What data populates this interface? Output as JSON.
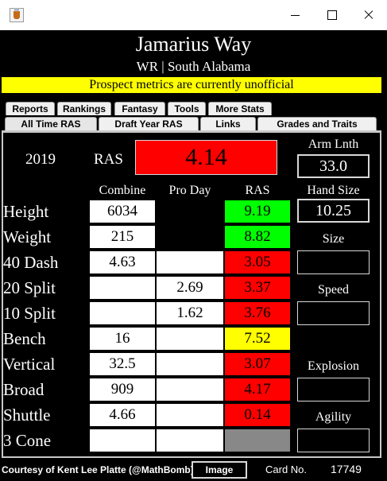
{
  "window": {
    "title": "",
    "minimize_icon": "minimize-icon",
    "maximize_icon": "maximize-icon",
    "close_icon": "close-icon"
  },
  "player": {
    "name": "Jamarius Way",
    "subtitle": "WR | South Alabama"
  },
  "notice": "Prospect metrics are currently unofficial",
  "tabs_row1": [
    "Reports",
    "Rankings",
    "Fantasy",
    "Tools",
    "More Stats"
  ],
  "tabs_row2": [
    "All Time RAS",
    "Draft Year RAS",
    "Links",
    "Grades and Traits"
  ],
  "active_tab": "All Time RAS",
  "summary": {
    "year": "2019",
    "ras_label": "RAS",
    "ras_value": "4.14",
    "ras_color": "#ff0000",
    "arm_length_label": "Arm Lnth",
    "arm_length_value": "33.0",
    "hand_size_label": "Hand Size",
    "hand_size_value": "10.25"
  },
  "columns": [
    "Combine",
    "Pro Day",
    "RAS"
  ],
  "rows": [
    {
      "label": "Height",
      "combine": "6034",
      "pro_day": "",
      "ras": "9.19",
      "ras_color": "#00ff00"
    },
    {
      "label": "Weight",
      "combine": "215",
      "pro_day": "",
      "ras": "8.82",
      "ras_color": "#00ff00"
    },
    {
      "label": "40 Dash",
      "combine": "4.63",
      "pro_day": "",
      "ras": "3.05",
      "ras_color": "#ff0000"
    },
    {
      "label": "20 Split",
      "combine": "",
      "pro_day": "2.69",
      "ras": "3.37",
      "ras_color": "#ff0000"
    },
    {
      "label": "10 Split",
      "combine": "",
      "pro_day": "1.62",
      "ras": "3.76",
      "ras_color": "#ff0000"
    },
    {
      "label": "Bench",
      "combine": "16",
      "pro_day": "",
      "ras": "7.52",
      "ras_color": "#ffff00"
    },
    {
      "label": "Vertical",
      "combine": "32.5",
      "pro_day": "",
      "ras": "3.07",
      "ras_color": "#ff0000"
    },
    {
      "label": "Broad",
      "combine": "909",
      "pro_day": "",
      "ras": "4.17",
      "ras_color": "#ff0000"
    },
    {
      "label": "Shuttle",
      "combine": "4.66",
      "pro_day": "",
      "ras": "0.14",
      "ras_color": "#ff0000"
    },
    {
      "label": "3 Cone",
      "combine": "",
      "pro_day": "",
      "ras": "",
      "ras_color": "#888888"
    }
  ],
  "grades": {
    "size_label": "Size",
    "speed_label": "Speed",
    "explosion_label": "Explosion",
    "agility_label": "Agility"
  },
  "footer": {
    "credit": "Courtesy of Kent Lee Platte (@MathBomb)",
    "image_button": "Image",
    "card_label": "Card No.",
    "card_number": "17749"
  }
}
